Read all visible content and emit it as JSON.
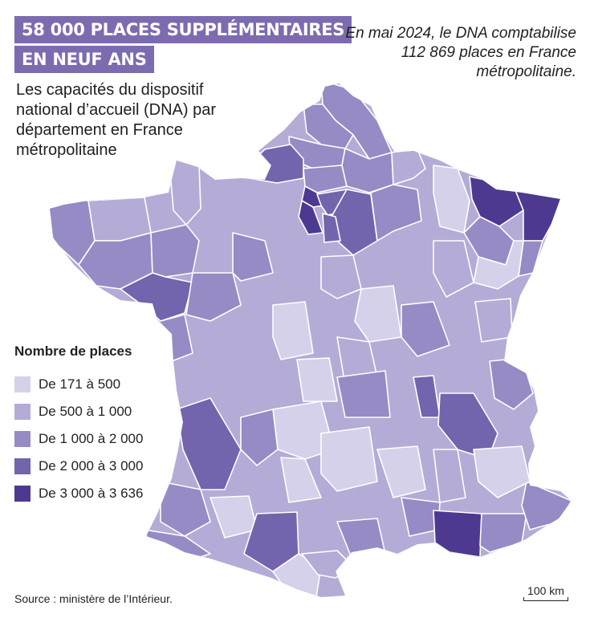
{
  "header": {
    "title_line1": "58 000 PLACES SUPPLÉMENTAIRES",
    "title_line2": "EN NEUF ANS",
    "subtitle": "Les capacités du dispositif national d’accueil (DNA) par département en France métropolitaine",
    "note": "En mai 2024, le DNA comptabilise 112 869 places en France métropolitaine."
  },
  "legend": {
    "title": "Nombre de places",
    "items": [
      {
        "label": "De 171 à 500",
        "color": "#d5d1ea"
      },
      {
        "label": "De 500 à 1 000",
        "color": "#b4acd6"
      },
      {
        "label": "De 1 000 à 2 000",
        "color": "#968bc4"
      },
      {
        "label": "De 2 000 à 3 000",
        "color": "#7463ad"
      },
      {
        "label": "De 3 000 à 3 636",
        "color": "#4d3990"
      }
    ]
  },
  "colors": {
    "accent": "#7d6bb0",
    "border": "#ffffff"
  },
  "footer": {
    "source": "Source : ministère de l’Intérieur.",
    "scale": "100 km"
  }
}
